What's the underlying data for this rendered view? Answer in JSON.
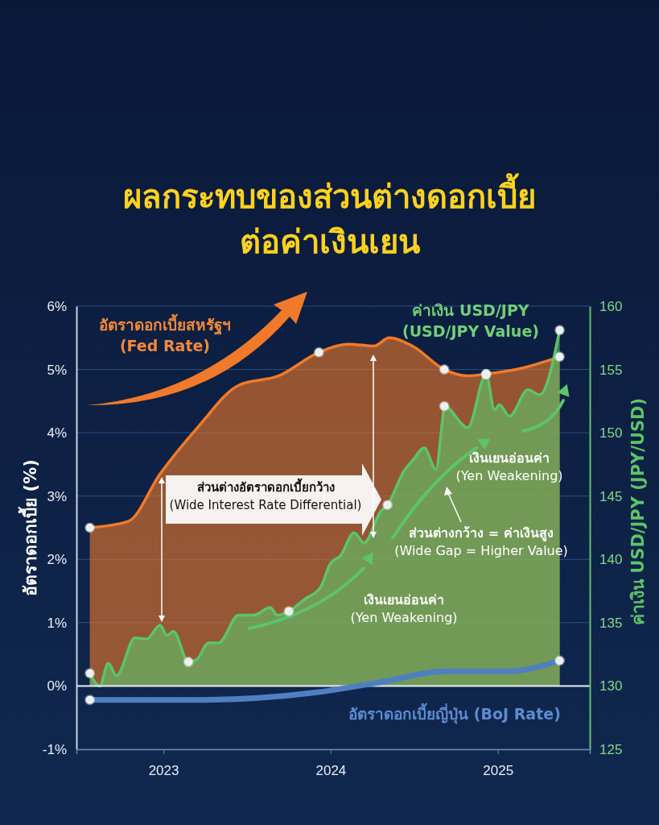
{
  "chart_data": {
    "type": "area",
    "title": "ผลกระทบของส่วนต่างดอกเบี้ย ต่อค่าเงินเยน",
    "ylabel": "อัตราดอกเบี้ย (%)",
    "y2label": "ค่าเงิน USD/JPY (JPY/USD)",
    "xlim": [
      2022.48,
      2025.55
    ],
    "xticks": [
      2023,
      2024,
      2025
    ],
    "ylim": [
      -1,
      6
    ],
    "yticks": [
      {
        "value": -1,
        "label": "-1%"
      },
      {
        "value": 0,
        "label": "0%"
      },
      {
        "value": 1,
        "label": "1%"
      },
      {
        "value": 2,
        "label": "2%"
      },
      {
        "value": 3,
        "label": "3%"
      },
      {
        "value": 4,
        "label": "4%"
      },
      {
        "value": 5,
        "label": "5%"
      },
      {
        "value": 6,
        "label": "6%"
      }
    ],
    "y2lim": [
      125,
      160
    ],
    "y2ticks": [
      125,
      130,
      135,
      140,
      145,
      150,
      155,
      160
    ],
    "grid": "y",
    "ref_lines": [
      {
        "axis": "y",
        "value": 0,
        "color": "#e8eef5"
      }
    ],
    "annotations": [
      "ส่วนต่างอัตราดอกเบี้ยกว้าง (Wide Interest Rate Differential)",
      "เงินเยนอ่อนค่า (Yen Weakening)",
      "ส่วนต่างกว้าง = ค่าเงินสูง (Wide Gap = Higher Value)",
      "เงินเยนอ่อนค่า (Yen Weakening)"
    ],
    "series": [
      {
        "name": "อัตราดอกเบี้ยสหรัฐฯ (Fed Rate)",
        "color": "#f07a2a",
        "x": [
          2022.56,
          2022.79,
          2022.98,
          2023.21,
          2023.45,
          2023.69,
          2023.93,
          2024.11,
          2024.26,
          2024.35,
          2024.49,
          2024.68,
          2024.82,
          2024.93,
          2025.11,
          2025.37
        ],
        "values": [
          2.5,
          2.6,
          3.35,
          4.1,
          4.75,
          4.9,
          5.27,
          5.4,
          5.37,
          5.5,
          5.37,
          5.0,
          4.9,
          4.93,
          5.0,
          5.2
        ]
      },
      {
        "type": "area",
        "axis": "y2",
        "name": "ค่าเงิน USD/JPY (USD/JPY Value)",
        "color": "#5cc46a",
        "x": [
          2022.56,
          2022.62,
          2022.67,
          2022.72,
          2022.83,
          2022.9,
          2022.98,
          2023.02,
          2023.06,
          2023.15,
          2023.2,
          2023.27,
          2023.33,
          2023.45,
          2023.54,
          2023.64,
          2023.68,
          2023.75,
          2023.85,
          2023.94,
          2024.0,
          2024.06,
          2024.14,
          2024.2,
          2024.3,
          2024.34,
          2024.44,
          2024.49,
          2024.56,
          2024.63,
          2024.67,
          2024.68,
          2024.82,
          2024.93,
          2024.98,
          2025.01,
          2025.07,
          2025.18,
          2025.25,
          2025.37
        ],
        "values": [
          131.0,
          130.0,
          131.8,
          130.8,
          133.8,
          133.7,
          134.8,
          134.0,
          134.3,
          131.9,
          132.1,
          133.4,
          133.4,
          135.6,
          135.6,
          136.2,
          135.6,
          135.9,
          136.9,
          137.8,
          139.7,
          140.3,
          142.1,
          141.3,
          143.8,
          144.3,
          147.0,
          147.8,
          148.8,
          147.1,
          151.1,
          152.1,
          150.4,
          154.6,
          151.8,
          152.2,
          151.3,
          153.4,
          153.0,
          158.1
        ]
      },
      {
        "type": "line",
        "name": "อัตราดอกเบี้ยญี่ปุ่น (BoJ Rate)",
        "color": "#4f7fc0",
        "x": [
          2022.56,
          2023.21,
          2023.92,
          2024.3,
          2024.68,
          2025.06,
          2025.37
        ],
        "values": [
          -0.22,
          -0.22,
          -0.1,
          0.06,
          0.23,
          0.23,
          0.4
        ]
      },
      {
        "type": "scatter",
        "color": "#e8f0f2",
        "x": [
          2022.56,
          2023.93,
          2024.68,
          2024.93,
          2025.37
        ],
        "values": [
          2.5,
          5.27,
          5.0,
          4.93,
          5.2
        ]
      },
      {
        "type": "scatter",
        "axis": "y2",
        "color": "#e8f0f2",
        "x": [
          2022.56,
          2023.15,
          2023.75,
          2024.34,
          2024.68,
          2024.93,
          2025.37
        ],
        "values": [
          131.0,
          131.9,
          135.9,
          144.3,
          152.1,
          154.6,
          158.1
        ]
      },
      {
        "type": "scatter",
        "color": "#e8f0f2",
        "x": [
          2022.56,
          2025.37
        ],
        "values": [
          -0.22,
          0.4
        ]
      }
    ]
  }
}
